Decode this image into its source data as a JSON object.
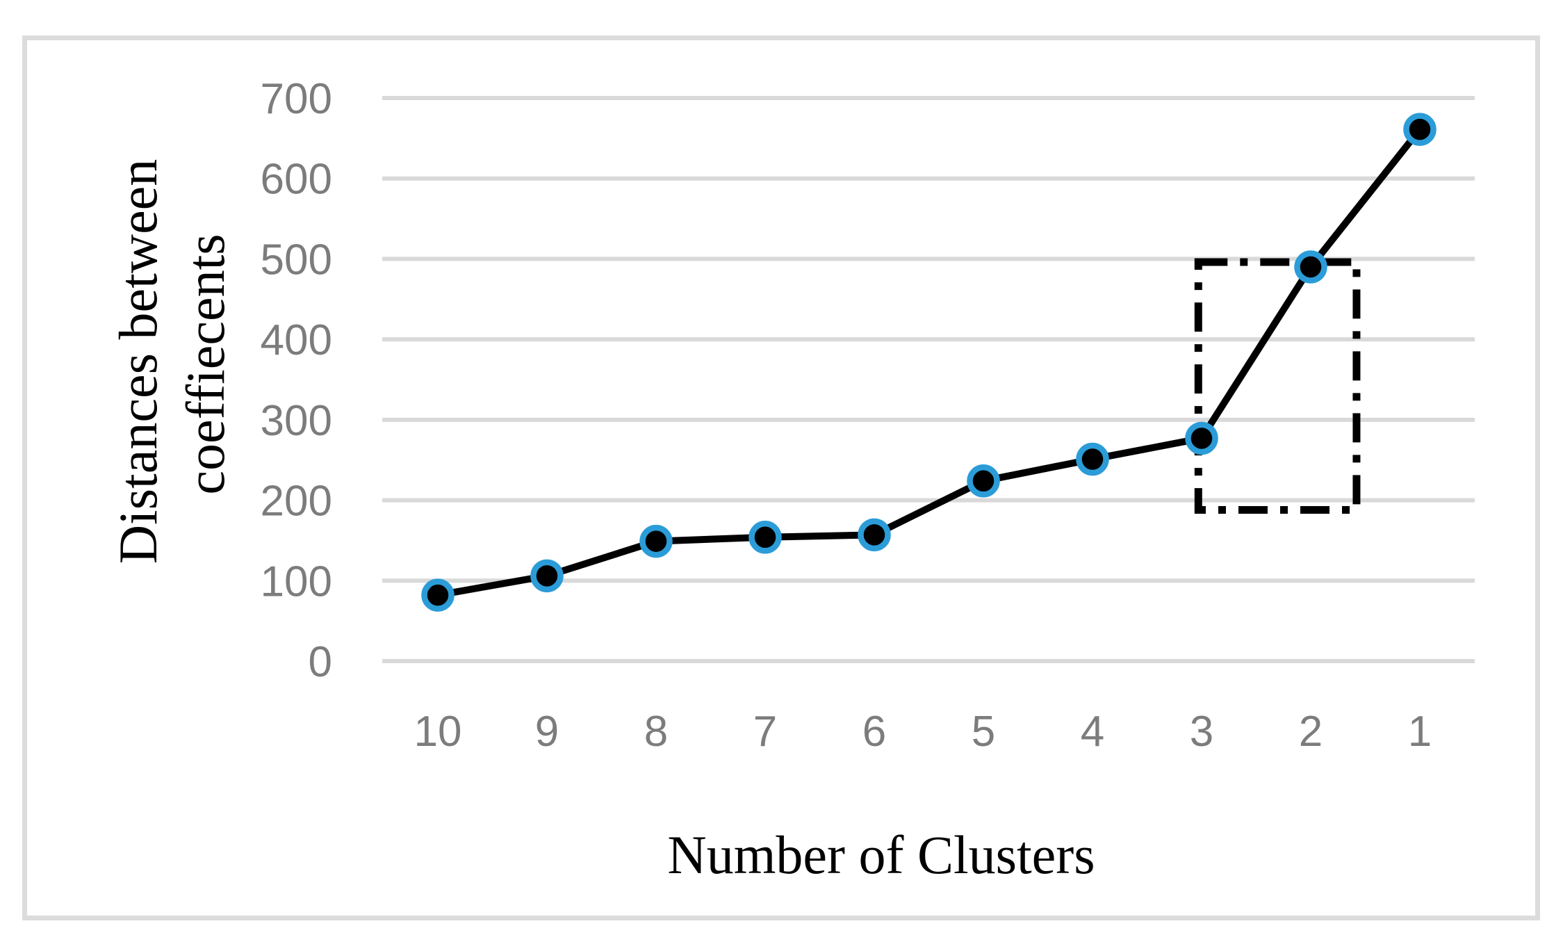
{
  "figure": {
    "background_color": "#FFFFFF",
    "border_color": "#DCDCDC"
  },
  "chart_data": {
    "type": "line",
    "title": "",
    "xlabel": "Number of Clusters",
    "ylabel": "Distances between coeffiecents",
    "ylabel_lines": [
      "Distances between",
      "coeffiecents"
    ],
    "categories": [
      "10",
      "9",
      "8",
      "7",
      "6",
      "5",
      "4",
      "3",
      "2",
      "1"
    ],
    "series": [
      {
        "name": "Distances between coefficients",
        "values": [
          82,
          106,
          149,
          154,
          157,
          224,
          251,
          277,
          490,
          661
        ]
      }
    ],
    "ylim": [
      0,
      700
    ],
    "yticks": [
      0,
      100,
      200,
      300,
      400,
      500,
      600,
      700
    ],
    "grid": "horizontal",
    "legend": "none",
    "styles": {
      "line_color": "#000000",
      "marker_fill": "#000000",
      "marker_ring_color": "#2B9CD8",
      "gridline_color": "#D9D9D9",
      "tick_label_color": "#7C7C7C",
      "axis_title_color": "#000000",
      "annotation_color": "#000000"
    },
    "annotations": [
      {
        "type": "rectangle",
        "line_style": "dash-dot",
        "color": "#000000",
        "purpose": "highlights the elbow jump between 3 and 2 clusters",
        "cat_index_from": 6.97,
        "cat_index_to": 8.42,
        "value_from": 188,
        "value_to": 496
      }
    ]
  }
}
